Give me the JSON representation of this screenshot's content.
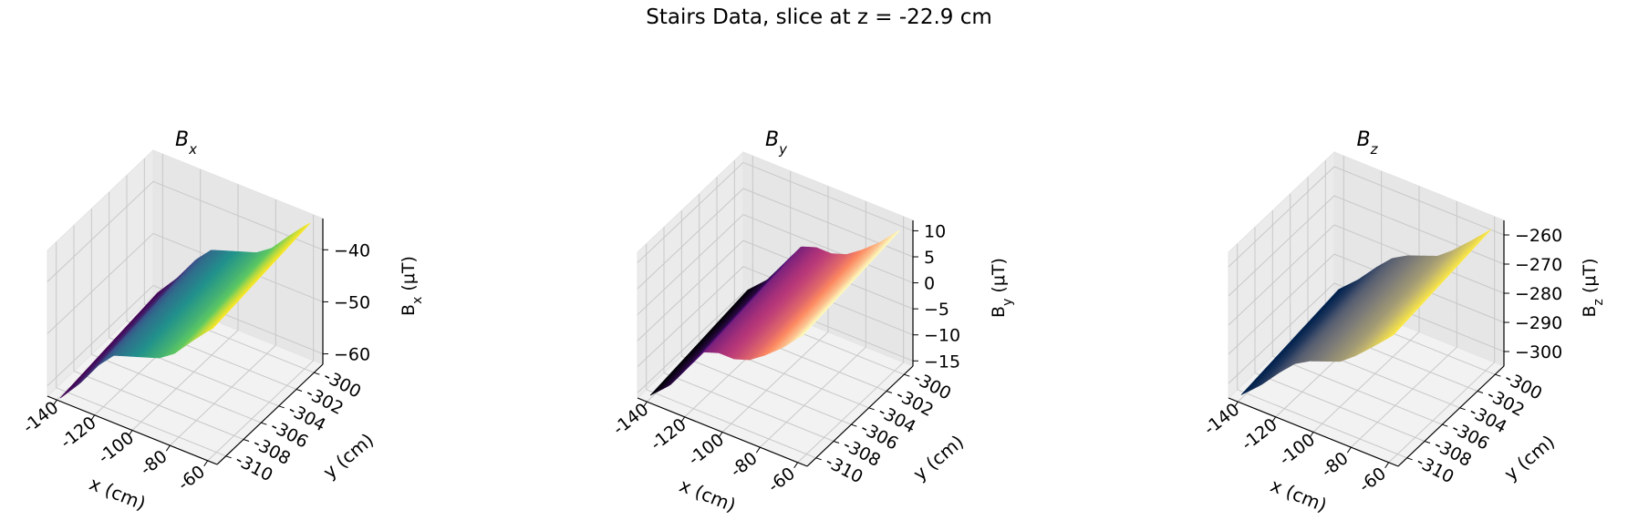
{
  "figure": {
    "title": "Stairs Data, slice at z = -22.9 cm"
  },
  "chart_data": [
    {
      "type": "surface",
      "title_main": "B",
      "title_sub": "x",
      "xlabel": "x (cm)",
      "ylabel": "y (cm)",
      "zlabel_main": "B",
      "zlabel_sub": "x",
      "zlabel_unit": " (μT)",
      "x_ticks": [
        "-140",
        "-120",
        "-100",
        "-80",
        "-60"
      ],
      "y_ticks": [
        "-310",
        "-308",
        "-306",
        "-304",
        "-302",
        "-300"
      ],
      "z_ticks": [
        "−60",
        "−50",
        "−40"
      ],
      "xlim": [
        -145,
        -55
      ],
      "ylim": [
        -311,
        -299
      ],
      "zlim": [
        -62,
        -34
      ],
      "colormap": "viridis",
      "grid": true,
      "profile_x": [
        -142,
        -130,
        -120,
        -112,
        -104,
        -96,
        -88,
        -80,
        -70,
        -62,
        -56
      ],
      "profile_z": [
        -62,
        -57,
        -52,
        -49,
        -48,
        -47,
        -46,
        -44,
        -40,
        -37,
        -35
      ]
    },
    {
      "type": "surface",
      "title_main": "B",
      "title_sub": "y",
      "xlabel": "x (cm)",
      "ylabel": "y (cm)",
      "zlabel_main": "B",
      "zlabel_sub": "y",
      "zlabel_unit": " (μT)",
      "x_ticks": [
        "-140",
        "-120",
        "-100",
        "-80",
        "-60"
      ],
      "y_ticks": [
        "-310",
        "-308",
        "-306",
        "-304",
        "-302",
        "-300"
      ],
      "z_ticks": [
        "−15",
        "−10",
        "−5",
        "0",
        "5",
        "10"
      ],
      "xlim": [
        -145,
        -55
      ],
      "ylim": [
        -311,
        -299
      ],
      "zlim": [
        -16,
        12
      ],
      "colormap": "magma",
      "grid": true,
      "profile_x": [
        -142,
        -130,
        -120,
        -112,
        -104,
        -96,
        -88,
        -80,
        -70,
        -62,
        -56
      ],
      "profile_z": [
        -15,
        -11,
        -6,
        -2,
        -1,
        -1,
        0,
        2,
        5,
        8,
        10
      ]
    },
    {
      "type": "surface",
      "title_main": "B",
      "title_sub": "z",
      "xlabel": "x (cm)",
      "ylabel": "y (cm)",
      "zlabel_main": "B",
      "zlabel_sub": "z",
      "zlabel_unit": " (μT)",
      "x_ticks": [
        "-140",
        "-120",
        "-100",
        "-80",
        "-60"
      ],
      "y_ticks": [
        "-310",
        "-308",
        "-306",
        "-304",
        "-302",
        "-300"
      ],
      "z_ticks": [
        "−300",
        "−290",
        "−280",
        "−270",
        "−260"
      ],
      "xlim": [
        -145,
        -55
      ],
      "ylim": [
        -311,
        -299
      ],
      "zlim": [
        -305,
        -255
      ],
      "colormap": "cividis",
      "grid": true,
      "profile_x": [
        -142,
        -130,
        -120,
        -112,
        -104,
        -96,
        -88,
        -80,
        -70,
        -62,
        -56
      ],
      "profile_z": [
        -303,
        -296,
        -289,
        -284,
        -281,
        -279,
        -277,
        -273,
        -267,
        -262,
        -258
      ]
    }
  ]
}
